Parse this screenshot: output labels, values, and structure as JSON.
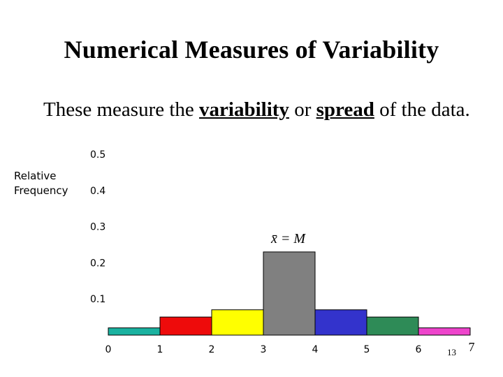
{
  "slide": {
    "title": "Numerical Measures of Variability",
    "subtitle_parts": [
      "These measure the ",
      "variability",
      " or ",
      "spread",
      " of the data."
    ],
    "page_number": "13"
  },
  "chart_data": {
    "type": "bar",
    "ylabel": "Relative Frequency",
    "annotation": "x̄ = M",
    "ylim": [
      0,
      0.5
    ],
    "y_ticks": [
      "0.5",
      "0.4",
      "0.3",
      "0.2",
      "0.1"
    ],
    "x_ticks": [
      "0",
      "1",
      "2",
      "3",
      "4",
      "5",
      "6",
      "7"
    ],
    "bars": [
      {
        "from": 0,
        "to": 1,
        "value": 0.02,
        "color": "#1ab2a0"
      },
      {
        "from": 1,
        "to": 2,
        "value": 0.05,
        "color": "#ee0b0b"
      },
      {
        "from": 2,
        "to": 3,
        "value": 0.07,
        "color": "#ffff00"
      },
      {
        "from": 3,
        "to": 4,
        "value": 0.23,
        "color": "#808080"
      },
      {
        "from": 4,
        "to": 5,
        "value": 0.07,
        "color": "#3333cc"
      },
      {
        "from": 5,
        "to": 6,
        "value": 0.05,
        "color": "#2e8b57"
      },
      {
        "from": 6,
        "to": 7,
        "value": 0.02,
        "color": "#ee44cc"
      }
    ]
  }
}
